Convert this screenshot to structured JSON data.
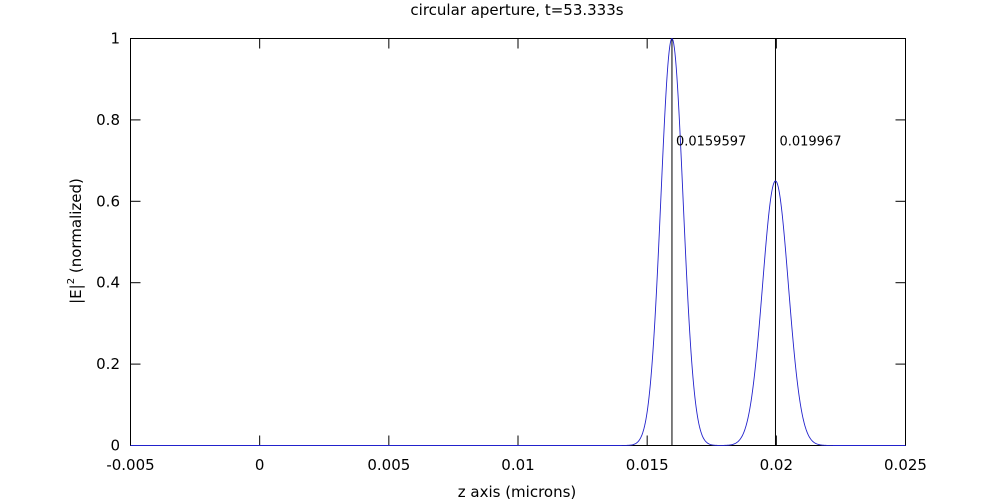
{
  "chart_data": {
    "type": "line",
    "title": "circular aperture, t=53.333s",
    "xlabel": "z axis (microns)",
    "ylabel_base": "|E|",
    "ylabel_sup": "2",
    "ylabel_rest": " (normalized)",
    "xlim": [
      -0.005,
      0.025
    ],
    "ylim": [
      0,
      1
    ],
    "xticks": [
      -0.005,
      0,
      0.005,
      0.01,
      0.015,
      0.02,
      0.025
    ],
    "xtick_labels": [
      "-0.005",
      "0",
      "0.005",
      "0.01",
      "0.015",
      "0.02",
      "0.025"
    ],
    "yticks": [
      0,
      0.2,
      0.4,
      0.6,
      0.8,
      1
    ],
    "ytick_labels": [
      "0",
      "0.2",
      "0.4",
      "0.6",
      "0.8",
      "1"
    ],
    "grid": false,
    "series": [
      {
        "color": "#2222cc",
        "peaks": [
          {
            "center": 0.0159597,
            "amplitude": 1.0,
            "sigma": 0.00043
          },
          {
            "center": 0.019967,
            "amplitude": 0.65,
            "sigma": 0.0005
          }
        ]
      }
    ],
    "markers": [
      {
        "x": 0.0159597,
        "label": "0.0159597"
      },
      {
        "x": 0.019967,
        "label": "0.019967"
      }
    ],
    "marker_label_y": 0.75
  }
}
